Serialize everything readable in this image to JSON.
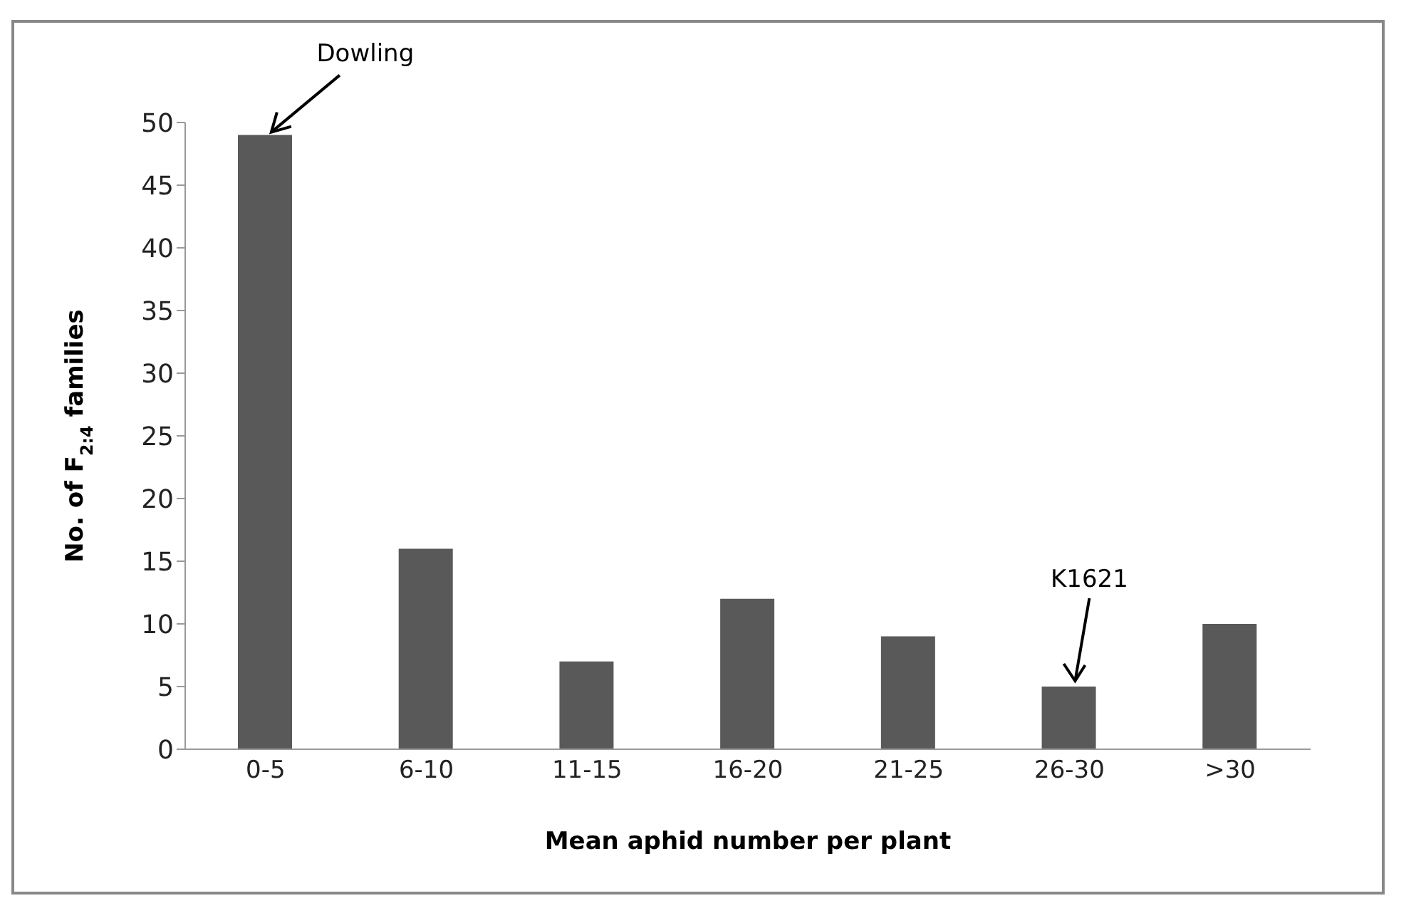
{
  "chart_data": {
    "type": "bar",
    "xlabel": "Mean aphid number per plant",
    "ylabel": "No. of F$_{2:4}$ families",
    "categories": [
      "0-5",
      "6-10",
      "11-15",
      "16-20",
      "21-25",
      "26-30",
      ">30"
    ],
    "values": [
      49,
      16,
      7,
      12,
      9,
      5,
      10
    ],
    "color": "#595959",
    "ylim": [
      0,
      50
    ],
    "yticks": [
      0,
      5,
      10,
      15,
      20,
      25,
      30,
      35,
      40,
      45,
      50
    ],
    "grid": false,
    "legend": false,
    "annotations": [
      {
        "text": "Dowling",
        "x": "0-5",
        "y": 49
      },
      {
        "text": "K1621",
        "x": "26-30",
        "y": 5
      }
    ]
  }
}
